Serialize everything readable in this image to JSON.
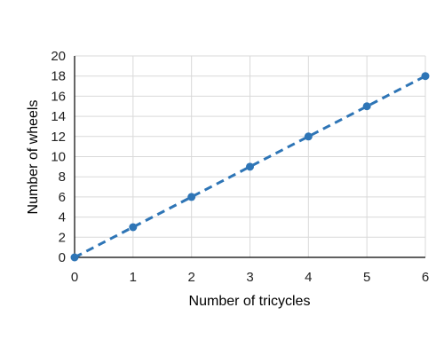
{
  "chart_data": {
    "type": "line",
    "title": "",
    "xlabel": "Number of tricycles",
    "ylabel": "Number of wheels",
    "xlim": [
      0,
      6
    ],
    "ylim": [
      0,
      20
    ],
    "xticks": [
      "0",
      "1",
      "2",
      "3",
      "4",
      "5",
      "6"
    ],
    "yticks": [
      "0",
      "2",
      "4",
      "6",
      "8",
      "10",
      "12",
      "14",
      "16",
      "18",
      "20"
    ],
    "grid": true,
    "legend": "none",
    "series": [
      {
        "x": [
          0,
          1,
          2,
          3,
          4,
          5,
          6
        ],
        "y": [
          0,
          3,
          6,
          9,
          12,
          15,
          18
        ],
        "line_style": "dashed",
        "marker": "circle",
        "color": "#2e75b6"
      }
    ]
  }
}
